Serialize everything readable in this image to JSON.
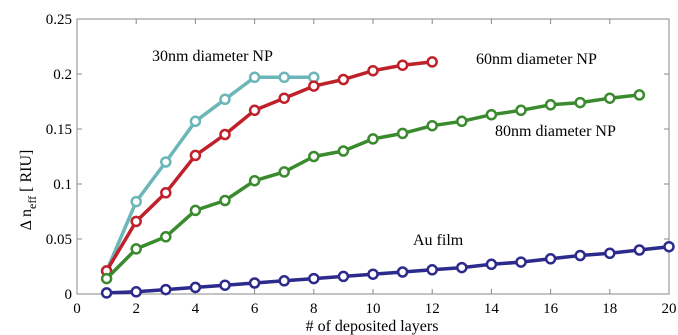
{
  "chart_data": {
    "type": "line",
    "xlabel": "# of deposited layers",
    "ylabel_main": "Δ n",
    "ylabel_sub": "eff",
    "ylabel_unit": "[ RIU]",
    "xlim": [
      0,
      20
    ],
    "ylim": [
      0,
      0.25
    ],
    "xticks": [
      "0",
      "2",
      "4",
      "6",
      "8",
      "10",
      "12",
      "14",
      "16",
      "18",
      "20"
    ],
    "yticks": [
      "0",
      "0.05",
      "0.1",
      "0.15",
      "0.2",
      "0.25"
    ],
    "grid": false,
    "series": [
      {
        "name": "30nm diameter NP",
        "color": "#6bb6b8",
        "x": [
          1,
          2,
          3,
          4,
          5,
          6,
          7,
          8
        ],
        "y": [
          0.021,
          0.084,
          0.12,
          0.157,
          0.177,
          0.197,
          0.197,
          0.197
        ]
      },
      {
        "name": "60nm diameter NP",
        "color": "#c0202a",
        "x": [
          1,
          2,
          3,
          4,
          5,
          6,
          7,
          8,
          9,
          10,
          11,
          12
        ],
        "y": [
          0.021,
          0.066,
          0.092,
          0.126,
          0.145,
          0.167,
          0.178,
          0.189,
          0.195,
          0.203,
          0.208,
          0.211
        ]
      },
      {
        "name": "80nm diameter NP",
        "color": "#3a8a2e",
        "x": [
          1,
          2,
          3,
          4,
          5,
          6,
          7,
          8,
          9,
          10,
          11,
          12,
          13,
          14,
          15,
          16,
          17,
          18,
          19
        ],
        "y": [
          0.014,
          0.041,
          0.052,
          0.076,
          0.085,
          0.103,
          0.111,
          0.125,
          0.13,
          0.141,
          0.146,
          0.153,
          0.157,
          0.163,
          0.167,
          0.172,
          0.174,
          0.178,
          0.181
        ]
      },
      {
        "name": "Au film",
        "color": "#2c2a8c",
        "x": [
          1,
          2,
          3,
          4,
          5,
          6,
          7,
          8,
          9,
          10,
          11,
          12,
          13,
          14,
          15,
          16,
          17,
          18,
          19,
          20
        ],
        "y": [
          0.001,
          0.002,
          0.004,
          0.006,
          0.008,
          0.01,
          0.012,
          0.014,
          0.016,
          0.018,
          0.02,
          0.022,
          0.024,
          0.027,
          0.029,
          0.032,
          0.035,
          0.037,
          0.04,
          0.043
        ]
      }
    ]
  }
}
